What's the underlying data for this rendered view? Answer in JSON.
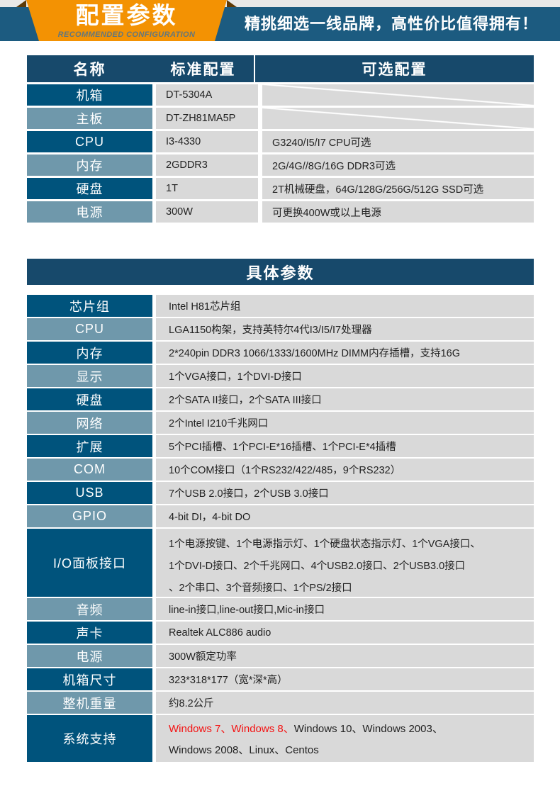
{
  "header": {
    "ribbon_title": "配置参数",
    "ribbon_subtitle": "RECOMMENDED CONFIGURATION",
    "slogan": "精挑细选一线品牌，高性价比值得拥有！"
  },
  "config_table": {
    "columns": [
      "名称",
      "标准配置",
      "可选配置"
    ],
    "rows": [
      {
        "name": "机箱",
        "standard": "DT-5304A",
        "optional": ""
      },
      {
        "name": "主板",
        "standard": "DT-ZH81MA5P",
        "optional": ""
      },
      {
        "name": "CPU",
        "standard": "I3-4330",
        "optional": "G3240/I5/I7 CPU可选"
      },
      {
        "name": "内存",
        "standard": "2GDDR3",
        "optional": "2G/4G//8G/16G DDR3可选"
      },
      {
        "name": "硬盘",
        "standard": "1T",
        "optional": "2T机械硬盘，64G/128G/256G/512G SSD可选"
      },
      {
        "name": "电源",
        "standard": "300W",
        "optional": "可更换400W或以上电源"
      }
    ]
  },
  "detail_table": {
    "title": "具体参数",
    "rows": [
      {
        "name": "芯片组",
        "value": "Intel H81芯片组"
      },
      {
        "name": "CPU",
        "value": "LGA1150构架，支持英特尔4代I3/I5/I7处理器"
      },
      {
        "name": "内存",
        "value": "2*240pin DDR3 1066/1333/1600MHz DIMM内存插槽，支持16G"
      },
      {
        "name": "显示",
        "value": "1个VGA接口，1个DVI-D接口"
      },
      {
        "name": "硬盘",
        "value": "2个SATA II接口，2个SATA III接口"
      },
      {
        "name": "网络",
        "value": "2个Intel  I210千兆网口"
      },
      {
        "name": "扩展",
        "value": "5个PCI插槽、1个PCI-E*16插槽、1个PCI-E*4插槽"
      },
      {
        "name": "COM",
        "value": "10个COM接口（1个RS232/422/485，9个RS232）"
      },
      {
        "name": "USB",
        "value": "7个USB 2.0接口，2个USB 3.0接口"
      },
      {
        "name": "GPIO",
        "value": "4-bit DI，4-bit DO"
      },
      {
        "name": "I/O面板接口",
        "lines": [
          "1个电源按键、1个电源指示灯、1个硬盘状态指示灯、1个VGA接口、",
          "1个DVI-D接口、2个千兆网口、4个USB2.0接口、2个USB3.0接口",
          "、2个串口、3个音频接口、1个PS/2接口"
        ]
      },
      {
        "name": "音频",
        "value": "line-in接口,line-out接口,Mic-in接口"
      },
      {
        "name": "声卡",
        "value": "Realtek  ALC886 audio"
      },
      {
        "name": "电源",
        "value": "300W额定功率"
      },
      {
        "name": "机箱尺寸",
        "value": "323*318*177（宽*深*高）"
      },
      {
        "name": "整机重量",
        "value": "约8.2公斤"
      },
      {
        "name": "系统支持",
        "line1_red": "Windows 7、Windows 8、",
        "line1_black": "Windows 10、Windows 2003、",
        "line2": "Windows 2008、Linux、Centos"
      }
    ]
  },
  "colors": {
    "navy_header": "#17496b",
    "banner_blue": "#1c5b80",
    "dark_blue_cell": "#00537c",
    "steel_blue_cell": "#6f98ab",
    "orange": "#f39203",
    "cell_gray": "#d9d9d9",
    "highlight_red": "#f41212"
  }
}
